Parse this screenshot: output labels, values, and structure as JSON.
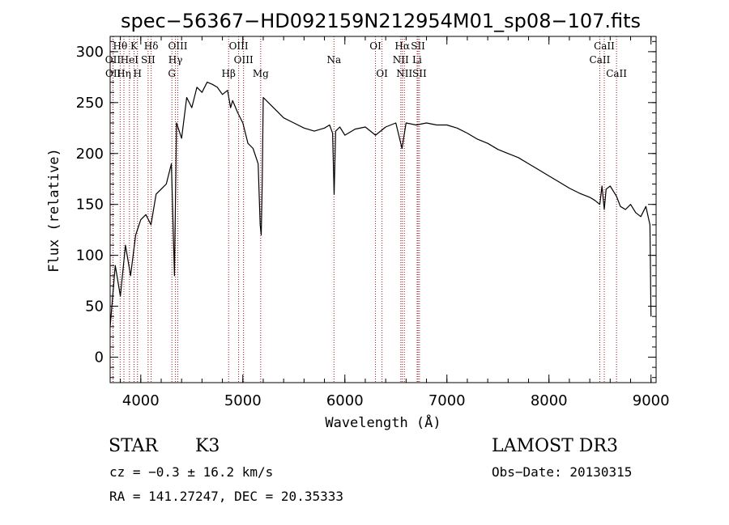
{
  "chart_data": {
    "type": "line",
    "title": "spec−56367−HD092159N212954M01_sp08−107.fits",
    "xlabel": "Wavelength (Å)",
    "ylabel": "Flux (relative)",
    "xlim": [
      3700,
      9050
    ],
    "ylim": [
      -25,
      315
    ],
    "xticks": [
      4000,
      5000,
      6000,
      7000,
      8000,
      9000
    ],
    "yticks": [
      0,
      50,
      100,
      150,
      200,
      250,
      300
    ],
    "line_color": "#000000",
    "marker_color": "#a0141e",
    "spectral_lines": [
      {
        "label": "Hθ",
        "wavelength": 3798,
        "row": 0
      },
      {
        "label": "K",
        "wavelength": 3934,
        "row": 0
      },
      {
        "label": "Hδ",
        "wavelength": 4102,
        "row": 0
      },
      {
        "label": "OIII",
        "wavelength": 4363,
        "row": 0
      },
      {
        "label": "OIII",
        "wavelength": 4959,
        "row": 0
      },
      {
        "label": "OI",
        "wavelength": 6300,
        "row": 0
      },
      {
        "label": "Hα",
        "wavelength": 6563,
        "row": 0
      },
      {
        "label": "SII",
        "wavelength": 6717,
        "row": 0
      },
      {
        "label": "CaII",
        "wavelength": 8542,
        "row": 0
      },
      {
        "label": "OII",
        "wavelength": 3727,
        "row": 1
      },
      {
        "label": "HeI",
        "wavelength": 3889,
        "row": 1
      },
      {
        "label": "SII",
        "wavelength": 4072,
        "row": 1
      },
      {
        "label": "Hγ",
        "wavelength": 4340,
        "row": 1
      },
      {
        "label": "OIII",
        "wavelength": 5007,
        "row": 1
      },
      {
        "label": "Na",
        "wavelength": 5893,
        "row": 1
      },
      {
        "label": "NII",
        "wavelength": 6548,
        "row": 1
      },
      {
        "label": "Li",
        "wavelength": 6708,
        "row": 1
      },
      {
        "label": "CaII",
        "wavelength": 8498,
        "row": 1
      },
      {
        "label": "OII",
        "wavelength": 3729,
        "row": 2
      },
      {
        "label": "Hη",
        "wavelength": 3835,
        "row": 2
      },
      {
        "label": "H",
        "wavelength": 3968,
        "row": 2
      },
      {
        "label": "G",
        "wavelength": 4305,
        "row": 2
      },
      {
        "label": "Hβ",
        "wavelength": 4861,
        "row": 2
      },
      {
        "label": "Mg",
        "wavelength": 5175,
        "row": 2
      },
      {
        "label": "OI",
        "wavelength": 6364,
        "row": 2
      },
      {
        "label": "NII",
        "wavelength": 6583,
        "row": 2
      },
      {
        "label": "SII",
        "wavelength": 6731,
        "row": 2
      },
      {
        "label": "CaII",
        "wavelength": 8662,
        "row": 2
      }
    ],
    "spectrum": {
      "x": [
        3700,
        3750,
        3800,
        3850,
        3900,
        3950,
        4000,
        4050,
        4100,
        4150,
        4200,
        4250,
        4300,
        4330,
        4350,
        4400,
        4450,
        4500,
        4550,
        4600,
        4650,
        4700,
        4750,
        4800,
        4850,
        4880,
        4900,
        4950,
        5000,
        5050,
        5100,
        5150,
        5170,
        5180,
        5190,
        5200,
        5250,
        5300,
        5400,
        5500,
        5600,
        5700,
        5800,
        5850,
        5880,
        5895,
        5910,
        5950,
        6000,
        6100,
        6200,
        6300,
        6400,
        6500,
        6560,
        6600,
        6700,
        6800,
        6900,
        7000,
        7100,
        7200,
        7300,
        7400,
        7500,
        7600,
        7700,
        7800,
        7900,
        8000,
        8100,
        8200,
        8300,
        8400,
        8450,
        8498,
        8520,
        8542,
        8560,
        8600,
        8662,
        8700,
        8750,
        8800,
        8850,
        8900,
        8950,
        8990,
        9000
      ],
      "y": [
        30,
        90,
        60,
        110,
        80,
        120,
        135,
        140,
        130,
        160,
        165,
        170,
        190,
        80,
        230,
        215,
        255,
        245,
        265,
        260,
        270,
        268,
        265,
        258,
        262,
        245,
        252,
        240,
        230,
        210,
        205,
        190,
        130,
        120,
        170,
        255,
        250,
        245,
        235,
        230,
        225,
        222,
        225,
        228,
        220,
        160,
        222,
        226,
        218,
        224,
        226,
        218,
        226,
        230,
        205,
        230,
        228,
        230,
        228,
        228,
        225,
        220,
        214,
        210,
        204,
        200,
        196,
        190,
        184,
        178,
        172,
        166,
        161,
        157,
        154,
        150,
        168,
        145,
        165,
        168,
        158,
        148,
        145,
        150,
        142,
        138,
        148,
        130,
        40
      ]
    },
    "info": {
      "class": "STAR",
      "subclass": "K3",
      "survey": "LAMOST DR3",
      "cz": "cz = −0.3 ± 16.2 km/s",
      "obs_date": "Obs−Date: 20130315",
      "coords": "RA = 141.27247, DEC =  20.35333"
    }
  }
}
